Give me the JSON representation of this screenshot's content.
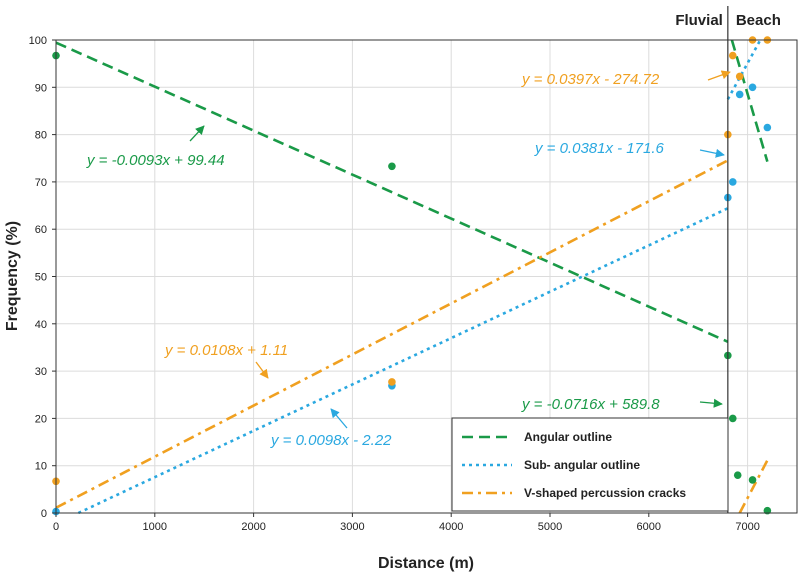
{
  "chart_data": {
    "type": "scatter",
    "xlabel": "Distance (m)",
    "ylabel": "Frequency (%)",
    "xlim": [
      0,
      7500
    ],
    "ylim": [
      0,
      100
    ],
    "x_ticks": [
      0,
      1000,
      2000,
      3000,
      4000,
      5000,
      6000,
      7000
    ],
    "y_ticks": [
      0,
      10,
      20,
      30,
      40,
      50,
      60,
      70,
      80,
      90,
      100
    ],
    "grid": true,
    "legend_position": "bottom-right",
    "regions": [
      {
        "label": "Fluvial",
        "x_end": 6800
      },
      {
        "label": "Beach",
        "x_start": 6800
      }
    ],
    "series": [
      {
        "name": "Angular outline",
        "color": "#1a9a48",
        "line_style": "dashed",
        "points": [
          [
            0,
            96.7
          ],
          [
            3400,
            73.3
          ],
          [
            6800,
            33.3
          ],
          [
            6850,
            20.0
          ],
          [
            6900,
            8.0
          ],
          [
            7050,
            7.0
          ],
          [
            7200,
            0.5
          ]
        ],
        "fits": [
          {
            "equation": "y = -0.0093x + 99.44",
            "x_range": [
              0,
              6800
            ]
          },
          {
            "equation": "y = -0.0716x + 589.8",
            "x_range": [
              6800,
              7200
            ]
          }
        ]
      },
      {
        "name": "Sub- angular outline",
        "color": "#2aa8e0",
        "line_style": "dotted",
        "points": [
          [
            0,
            0.3
          ],
          [
            3400,
            26.9
          ],
          [
            6800,
            66.7
          ],
          [
            6850,
            70.0
          ],
          [
            6920,
            88.5
          ],
          [
            7050,
            90.0
          ],
          [
            7200,
            81.5
          ]
        ],
        "fits": [
          {
            "equation": "y = 0.0098x - 2.22",
            "x_range": [
              0,
              6800
            ]
          },
          {
            "equation": "y = 0.0381x - 171.6",
            "x_range": [
              6800,
              7200
            ]
          }
        ]
      },
      {
        "name": "V-shaped percussion cracks",
        "color": "#f0a020",
        "line_style": "dash-dot",
        "points": [
          [
            0,
            6.7
          ],
          [
            3400,
            27.7
          ],
          [
            6800,
            80.0
          ],
          [
            6850,
            96.7
          ],
          [
            6920,
            92.3
          ],
          [
            7050,
            100.0
          ],
          [
            7200,
            100.0
          ]
        ],
        "fits": [
          {
            "equation": "y = 0.0108x + 1.11",
            "x_range": [
              0,
              6800
            ]
          },
          {
            "equation": "y = 0.0397x - 274.72",
            "x_range": [
              6800,
              7200
            ]
          }
        ]
      }
    ]
  }
}
